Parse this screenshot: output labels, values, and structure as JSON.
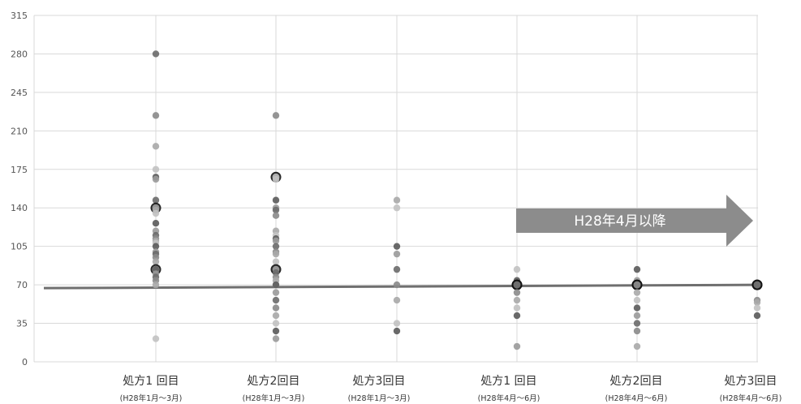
{
  "chart_data": {
    "type": "scatter",
    "ylim": [
      0,
      315
    ],
    "yticks": [
      0,
      35,
      70,
      105,
      140,
      175,
      210,
      245,
      280,
      315
    ],
    "grid": true,
    "categories": [
      {
        "label": "処方1 回目",
        "sub": "(H28年1月〜3月)"
      },
      {
        "label": "処方2回目",
        "sub": "(H28年1月〜3月)"
      },
      {
        "label": "処方3回目",
        "sub": "(H28年1月〜3月)"
      },
      {
        "label": "処方1 回目",
        "sub": "(H28年4月〜6月)"
      },
      {
        "label": "処方2回目",
        "sub": "(H28年4月〜6月)"
      },
      {
        "label": "処方3回目",
        "sub": "(H28年4月〜6月)"
      }
    ],
    "points": [
      [
        280,
        224,
        196,
        175,
        168,
        166,
        147,
        140,
        138,
        135,
        126,
        119,
        115,
        112,
        110,
        108,
        105,
        100,
        98,
        95,
        91,
        84,
        84,
        80,
        77,
        74,
        70,
        21
      ],
      [
        224,
        168,
        166,
        147,
        140,
        138,
        133,
        119,
        115,
        112,
        110,
        105,
        100,
        98,
        91,
        84,
        84,
        81,
        77,
        74,
        70,
        70,
        63,
        56,
        49,
        42,
        35,
        28,
        21
      ],
      [
        147,
        140,
        105,
        98,
        84,
        70,
        56,
        35,
        28
      ],
      [
        84,
        74,
        70,
        70,
        63,
        56,
        49,
        42,
        14
      ],
      [
        84,
        74,
        70,
        70,
        63,
        56,
        49,
        42,
        35,
        28,
        14
      ],
      [
        70,
        70,
        56,
        54,
        49,
        42
      ]
    ],
    "reference_line": {
      "from": 67,
      "to": 70
    },
    "annotation": "H28年4月以降"
  }
}
